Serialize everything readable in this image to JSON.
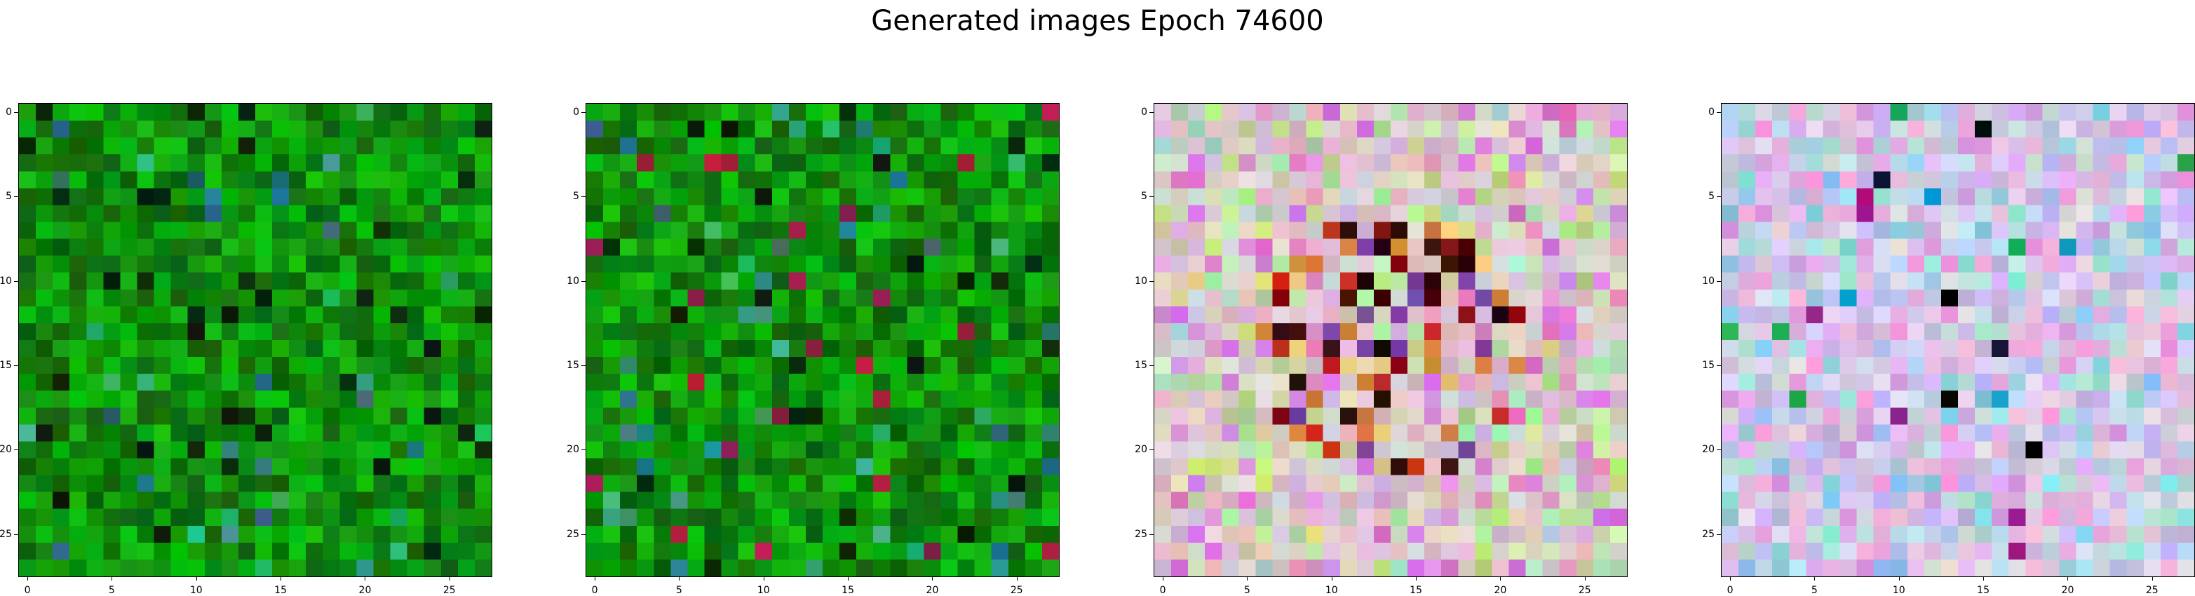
{
  "title": "Generated images Epoch 74600",
  "axis": {
    "grid_size": 28,
    "ticks": [
      0,
      5,
      10,
      15,
      20,
      25
    ],
    "tick_labels": [
      "0",
      "5",
      "10",
      "15",
      "20",
      "25"
    ]
  },
  "panels": [
    {
      "palette": "green"
    },
    {
      "palette": "green-noisy"
    },
    {
      "palette": "pastel-warm"
    },
    {
      "palette": "pastel-cool"
    }
  ]
}
